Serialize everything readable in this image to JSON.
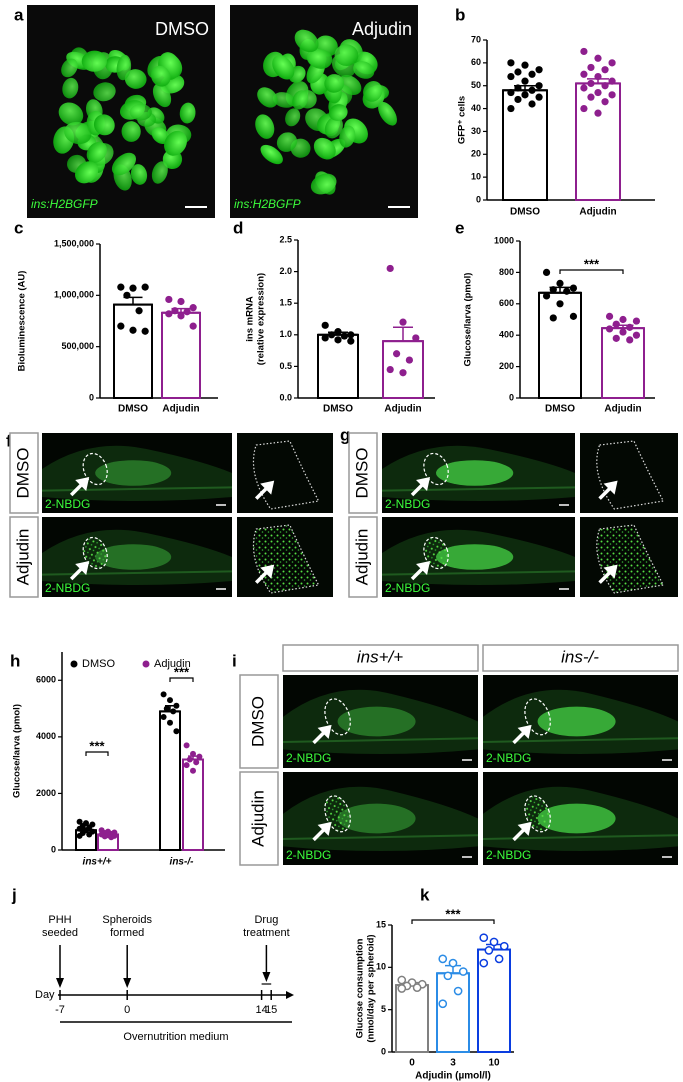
{
  "panel_labels": [
    "a",
    "b",
    "c",
    "d",
    "e",
    "f",
    "g",
    "h",
    "i",
    "j",
    "k"
  ],
  "image_a": {
    "conditions": [
      "DMSO",
      "Adjudin"
    ],
    "reporter": "ins:H2BGFP"
  },
  "image_f": {
    "conditions": [
      "DMSO",
      "Adjudin"
    ],
    "stain": "2-NBDG"
  },
  "image_g": {
    "conditions": [
      "DMSO",
      "Adjudin"
    ],
    "stain": "2-NBDG"
  },
  "image_i": {
    "genotypes": [
      "ins+/+",
      "ins-/-"
    ],
    "conditions": [
      "DMSO",
      "Adjudin"
    ],
    "stain": "2-NBDG"
  },
  "timeline": {
    "events": [
      [
        "PHH",
        "seeded"
      ],
      [
        "Spheroids",
        "formed"
      ],
      [
        "Drug",
        "treatment"
      ]
    ],
    "axis_label": "Day",
    "days": [
      -7,
      0,
      14,
      15
    ],
    "medium": "Overnutrition medium"
  },
  "chart_data": [
    {
      "type": "bar",
      "ylabel": [
        "GFP⁺ cells"
      ],
      "categories": [
        "DMSO",
        "Adjudin"
      ],
      "values": [
        48,
        51
      ],
      "errors": [
        2,
        2
      ],
      "colors": [
        "#000000",
        "#8e1f8e"
      ],
      "points": [
        [
          60,
          59,
          57,
          56,
          55,
          54,
          52,
          50,
          49,
          48,
          47,
          46,
          45,
          44,
          42,
          40
        ],
        [
          65,
          62,
          60,
          58,
          57,
          55,
          54,
          52,
          51,
          50,
          49,
          47,
          46,
          45,
          43,
          40,
          38
        ]
      ],
      "ylim": [
        0,
        70
      ],
      "yticks": [
        0,
        10,
        20,
        30,
        40,
        50,
        60,
        70
      ]
    },
    {
      "type": "bar",
      "ylabel": [
        "Bioluminescence (AU)"
      ],
      "categories": [
        "DMSO",
        "Adjudin"
      ],
      "values": [
        910000,
        830000
      ],
      "errors": [
        70000,
        40000
      ],
      "colors": [
        "#000000",
        "#8e1f8e"
      ],
      "points": [
        [
          1080000,
          1070000,
          1080000,
          1000000,
          850000,
          700000,
          660000,
          650000
        ],
        [
          960000,
          940000,
          880000,
          850000,
          840000,
          820000,
          800000,
          700000
        ]
      ],
      "ylim": [
        0,
        1500000
      ],
      "yticks": [
        0,
        {
          "value": 500000,
          "label": "500,000"
        },
        {
          "value": 1000000,
          "label": "1,000,000"
        },
        {
          "value": 1500000,
          "label": "1,500,000"
        }
      ]
    },
    {
      "type": "bar",
      "ylabel": [
        "ins mRNA",
        "(relative expression)"
      ],
      "categories": [
        "DMSO",
        "Adjudin"
      ],
      "values": [
        1.0,
        0.9
      ],
      "errors": [
        0.04,
        0.22
      ],
      "colors": [
        "#000000",
        "#8e1f8e"
      ],
      "points": [
        [
          1.15,
          1.05,
          1.0,
          1.0,
          0.98,
          0.95,
          0.92,
          0.9
        ],
        [
          2.05,
          1.2,
          0.95,
          0.7,
          0.6,
          0.45,
          0.4
        ]
      ],
      "ylim": [
        0,
        2.5
      ],
      "yticks": [
        {
          "value": 0,
          "label": "0.0"
        },
        0.5,
        {
          "value": 1,
          "label": "1.0"
        },
        1.5,
        {
          "value": 2,
          "label": "2.0"
        },
        2.5
      ]
    },
    {
      "type": "bar",
      "ylabel": [
        "Glucose/larva (pmol)"
      ],
      "categories": [
        "DMSO",
        "Adjudin"
      ],
      "values": [
        670,
        445
      ],
      "errors": [
        35,
        18
      ],
      "colors": [
        "#000000",
        "#8e1f8e"
      ],
      "points": [
        [
          800,
          730,
          700,
          690,
          680,
          650,
          600,
          520,
          510
        ],
        [
          520,
          500,
          490,
          470,
          450,
          440,
          420,
          400,
          380,
          370
        ]
      ],
      "ylim": [
        0,
        1000
      ],
      "yticks": [
        0,
        200,
        400,
        600,
        800,
        1000
      ],
      "annotations": [
        "***"
      ]
    },
    {
      "type": "bar",
      "ylabel": [
        "Glucose/larva (pmol)"
      ],
      "categories": [
        "ins+/+",
        "ins-/-"
      ],
      "series": [
        {
          "name": "DMSO",
          "color": "#000000",
          "values": [
            700,
            4900
          ],
          "errors": [
            40,
            200
          ],
          "points": [
            [
              1000,
              950,
              900,
              850,
              800,
              750,
              700,
              650,
              600,
              550,
              500
            ],
            [
              5500,
              5300,
              5100,
              5000,
              4900,
              4700,
              4500,
              4200
            ]
          ]
        },
        {
          "name": "Adjudin",
          "color": "#8e1f8e",
          "values": [
            550,
            3200
          ],
          "errors": [
            20,
            120
          ],
          "points": [
            [
              700,
              650,
              620,
              600,
              570,
              550,
              520,
              500,
              480,
              450
            ],
            [
              3700,
              3400,
              3300,
              3200,
              3100,
              3000,
              2800
            ]
          ]
        }
      ],
      "ylim": [
        0,
        7000
      ],
      "yticks": [
        0,
        2000,
        4000,
        6000
      ],
      "annotations": [
        "***",
        "***"
      ],
      "legend": "top"
    },
    {
      "type": "bar",
      "ylabel": [
        "Glucose consumption",
        "(nmol/day per spheroid)"
      ],
      "xlabel": "Adjudin (µmol/l)",
      "categories": [
        "0",
        "3",
        "10"
      ],
      "values": [
        7.9,
        9.3,
        12.1
      ],
      "errors": [
        0.3,
        0.9,
        0.6
      ],
      "colors": [
        "#808080",
        "#2b8ce6",
        "#0a3de0"
      ],
      "points": [
        [
          8.5,
          8.2,
          8.0,
          7.8,
          7.6,
          7.5
        ],
        [
          11.0,
          10.5,
          9.5,
          9.0,
          7.2,
          5.7
        ],
        [
          13.5,
          13.0,
          12.5,
          12.0,
          11.0,
          10.5
        ]
      ],
      "point_style": "open",
      "ylim": [
        0,
        15
      ],
      "yticks": [
        0,
        5,
        10,
        15
      ],
      "annotations": [
        "***"
      ]
    }
  ]
}
